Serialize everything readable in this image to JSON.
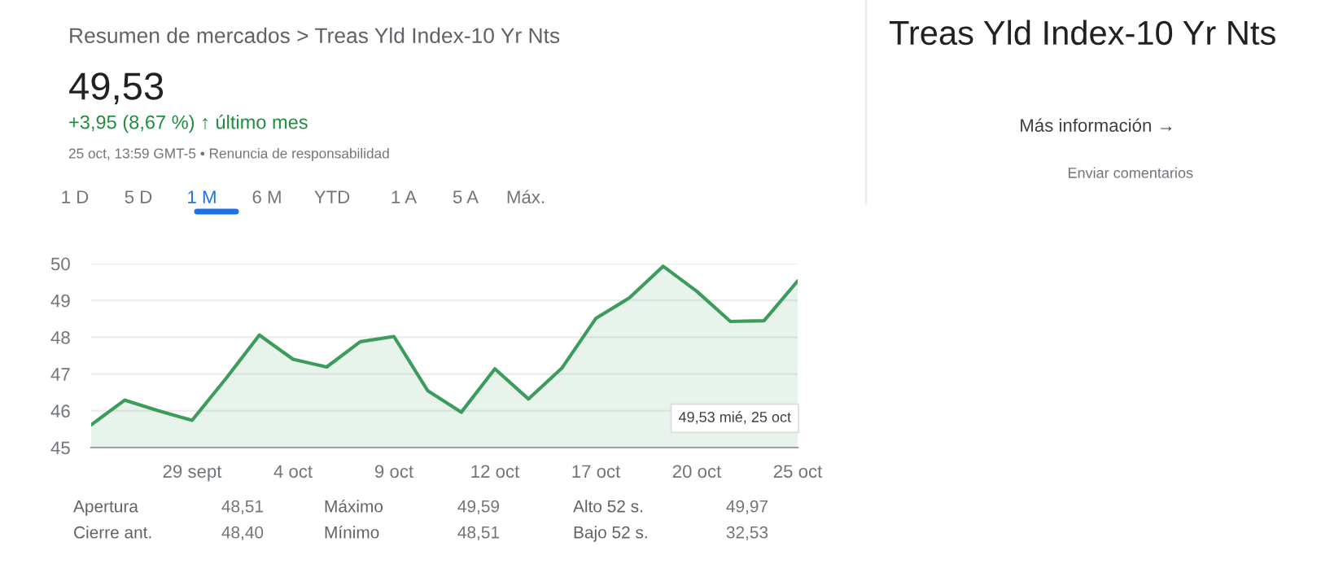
{
  "chart_data": {
    "type": "area",
    "title": "Treas Yld Index-10 Yr Nts",
    "categories": [
      null,
      null,
      null,
      "29 sept",
      null,
      null,
      "4 oct",
      null,
      null,
      "9 oct",
      null,
      null,
      "12 oct",
      null,
      null,
      "17 oct",
      null,
      null,
      "20 oct",
      null,
      null,
      "25 oct"
    ],
    "series": [
      {
        "color": "#3c9c5c",
        "values": [
          45.62,
          46.29,
          46.0,
          45.74,
          46.87,
          48.06,
          47.4,
          47.19,
          47.88,
          48.02,
          46.55,
          45.96,
          47.14,
          46.32,
          47.17,
          48.51,
          49.07,
          49.93,
          49.25,
          48.43,
          48.45,
          49.53
        ]
      }
    ],
    "ylim": [
      45,
      50
    ],
    "yticks": [
      45,
      46,
      47,
      48,
      49,
      50
    ],
    "grid": "y",
    "marker": "none",
    "line_style": "solid",
    "annotations": [
      "49,53 mié, 25 oct",
      "Resumen de mercados > Treas Yld Index-10 Yr Nts",
      "49,53",
      "+3,95 (8,67 %) ↑ último mes",
      "25 oct, 13:59 GMT-5 • Renuncia de responsabilidad",
      "1 D",
      "5 D",
      "1 M",
      "6 M",
      "YTD",
      "1 A",
      "5 A",
      "Máx.",
      "Apertura",
      "48,51",
      "Máximo",
      "49,59",
      "Alto 52 s.",
      "49,97",
      "Cierre ant.",
      "48,40",
      "Mínimo",
      "48,51",
      "Bajo 52 s.",
      "32,53",
      "Más información →",
      "Enviar comentarios"
    ]
  }
}
